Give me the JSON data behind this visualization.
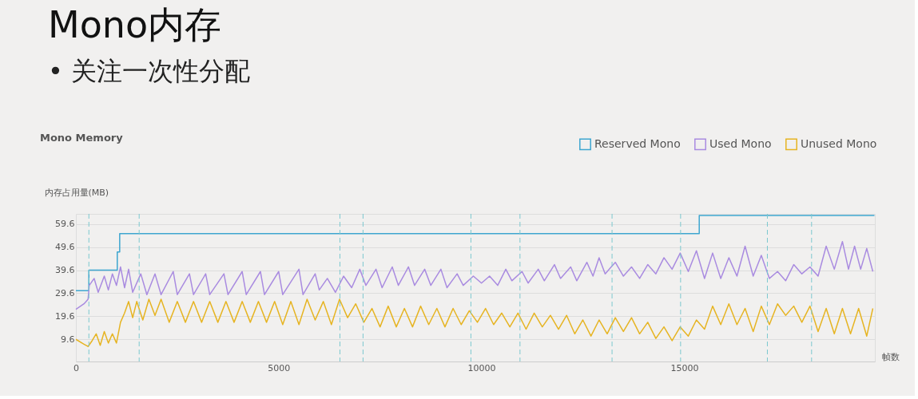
{
  "chart_data": {
    "type": "line",
    "title": "Mono内存",
    "subtitle": "• 关注一次性分配",
    "annotations": [
      "Mono Memory"
    ],
    "xlabel": "帧数",
    "ylabel": "内存占用量(MB)",
    "xlim": [
      0,
      19700
    ],
    "xticks": [
      0,
      5000,
      10000,
      15000
    ],
    "ylim": [
      0,
      64
    ],
    "yticks": [
      9.6,
      19.6,
      29.6,
      39.6,
      49.6,
      59.6
    ],
    "grid": "y",
    "legend": "top right",
    "marker": "none",
    "line_style": "solid",
    "ref_lines": [
      {
        "axis": "x",
        "value": 320,
        "color": "#7cc8cf",
        "line_style": "dashed"
      },
      {
        "axis": "x",
        "value": 1560,
        "color": "#7cc8cf",
        "line_style": "dashed"
      },
      {
        "axis": "x",
        "value": 6510,
        "color": "#7cc8cf",
        "line_style": "dashed"
      },
      {
        "axis": "x",
        "value": 7080,
        "color": "#7cc8cf",
        "line_style": "dashed"
      },
      {
        "axis": "x",
        "value": 9740,
        "color": "#7cc8cf",
        "line_style": "dashed"
      },
      {
        "axis": "x",
        "value": 10950,
        "color": "#7cc8cf",
        "line_style": "dashed"
      },
      {
        "axis": "x",
        "value": 13220,
        "color": "#7cc8cf",
        "line_style": "dashed"
      },
      {
        "axis": "x",
        "value": 14910,
        "color": "#7cc8cf",
        "line_style": "dashed"
      },
      {
        "axis": "x",
        "value": 17050,
        "color": "#7cc8cf",
        "line_style": "dashed"
      },
      {
        "axis": "x",
        "value": 18140,
        "color": "#7cc8cf",
        "line_style": "dashed"
      }
    ],
    "series": [
      {
        "name": "Reserved Mono",
        "type": "step",
        "color": "#3ea6d0",
        "x": [
          0,
          320,
          1020,
          1080,
          15370,
          19690
        ],
        "values": [
          30.7,
          39.6,
          47.5,
          55.4,
          63.3,
          63.3
        ]
      },
      {
        "name": "Used Mono",
        "color": "#a98be0",
        "x": [
          0,
          200,
          300,
          330,
          450,
          550,
          700,
          800,
          900,
          1000,
          1100,
          1200,
          1300,
          1400,
          1600,
          1750,
          1950,
          2100,
          2400,
          2500,
          2800,
          2900,
          3200,
          3300,
          3650,
          3750,
          4100,
          4200,
          4550,
          4650,
          5000,
          5100,
          5500,
          5600,
          5900,
          6000,
          6200,
          6400,
          6600,
          6800,
          7000,
          7150,
          7400,
          7550,
          7800,
          7950,
          8200,
          8350,
          8600,
          8750,
          9000,
          9150,
          9400,
          9550,
          9800,
          10000,
          10200,
          10400,
          10600,
          10750,
          11000,
          11150,
          11400,
          11550,
          11800,
          11950,
          12200,
          12350,
          12600,
          12750,
          12900,
          13050,
          13300,
          13500,
          13700,
          13900,
          14100,
          14300,
          14500,
          14700,
          14900,
          15100,
          15300,
          15500,
          15700,
          15900,
          16100,
          16300,
          16500,
          16700,
          16900,
          17100,
          17300,
          17500,
          17700,
          17900,
          18100,
          18300,
          18500,
          18700,
          18900,
          19050,
          19200,
          19350,
          19500,
          19650
        ],
        "values": [
          22.6,
          25,
          27,
          33,
          36,
          30,
          37,
          31,
          38,
          33,
          41,
          32,
          40,
          30,
          38,
          29,
          38,
          29,
          39,
          29,
          38,
          29,
          38,
          29,
          38,
          29,
          39,
          29,
          39,
          29,
          39,
          29,
          40,
          29,
          38,
          31,
          36,
          30,
          37,
          32,
          40,
          33,
          40,
          32,
          41,
          33,
          41,
          33,
          40,
          33,
          40,
          32,
          38,
          33,
          37,
          34,
          37,
          33,
          40,
          35,
          39,
          34,
          40,
          35,
          42,
          36,
          41,
          35,
          43,
          37,
          45,
          38,
          43,
          37,
          41,
          36,
          42,
          38,
          45,
          40,
          47,
          39,
          48,
          36,
          47,
          36,
          45,
          37,
          50,
          37,
          46,
          36,
          39,
          35,
          42,
          38,
          41,
          37,
          50,
          40,
          52,
          40,
          50,
          40,
          49,
          39
        ]
      },
      {
        "name": "Unused Mono",
        "color": "#e6b422",
        "x": [
          0,
          200,
          300,
          400,
          500,
          600,
          700,
          800,
          900,
          1000,
          1100,
          1200,
          1300,
          1400,
          1500,
          1650,
          1800,
          1950,
          2100,
          2300,
          2500,
          2700,
          2900,
          3100,
          3300,
          3500,
          3700,
          3900,
          4100,
          4300,
          4500,
          4700,
          4900,
          5100,
          5300,
          5500,
          5700,
          5900,
          6100,
          6300,
          6500,
          6700,
          6900,
          7100,
          7300,
          7500,
          7700,
          7900,
          8100,
          8300,
          8500,
          8700,
          8900,
          9100,
          9300,
          9500,
          9700,
          9900,
          10100,
          10300,
          10500,
          10700,
          10900,
          11100,
          11300,
          11500,
          11700,
          11900,
          12100,
          12300,
          12500,
          12700,
          12900,
          13100,
          13300,
          13500,
          13700,
          13900,
          14100,
          14300,
          14500,
          14700,
          14900,
          15100,
          15300,
          15500,
          15700,
          15900,
          16100,
          16300,
          16500,
          16700,
          16900,
          17100,
          17300,
          17500,
          17700,
          17900,
          18100,
          18300,
          18500,
          18700,
          18900,
          19100,
          19300,
          19500,
          19650
        ],
        "values": [
          9.6,
          7.5,
          6.5,
          9,
          12,
          7,
          13,
          8,
          12,
          8,
          17,
          21,
          26,
          19,
          26,
          18,
          27,
          20,
          27,
          17,
          26,
          17,
          26,
          17,
          26,
          17,
          26,
          17,
          26,
          17,
          26,
          17,
          26,
          16,
          26,
          16,
          27,
          18,
          26,
          16,
          27,
          19,
          25,
          17,
          23,
          15,
          24,
          15,
          23,
          15,
          24,
          16,
          23,
          15,
          23,
          16,
          22,
          17,
          23,
          16,
          21,
          15,
          21,
          14,
          21,
          15,
          20,
          14,
          20,
          12,
          18,
          11,
          18,
          12,
          19,
          13,
          19,
          12,
          17,
          10,
          15,
          9,
          15,
          11,
          18,
          14,
          24,
          16,
          25,
          16,
          23,
          13,
          24,
          16,
          25,
          20,
          24,
          17,
          24,
          13,
          23,
          12,
          23,
          12,
          23,
          11,
          23
        ]
      }
    ]
  }
}
